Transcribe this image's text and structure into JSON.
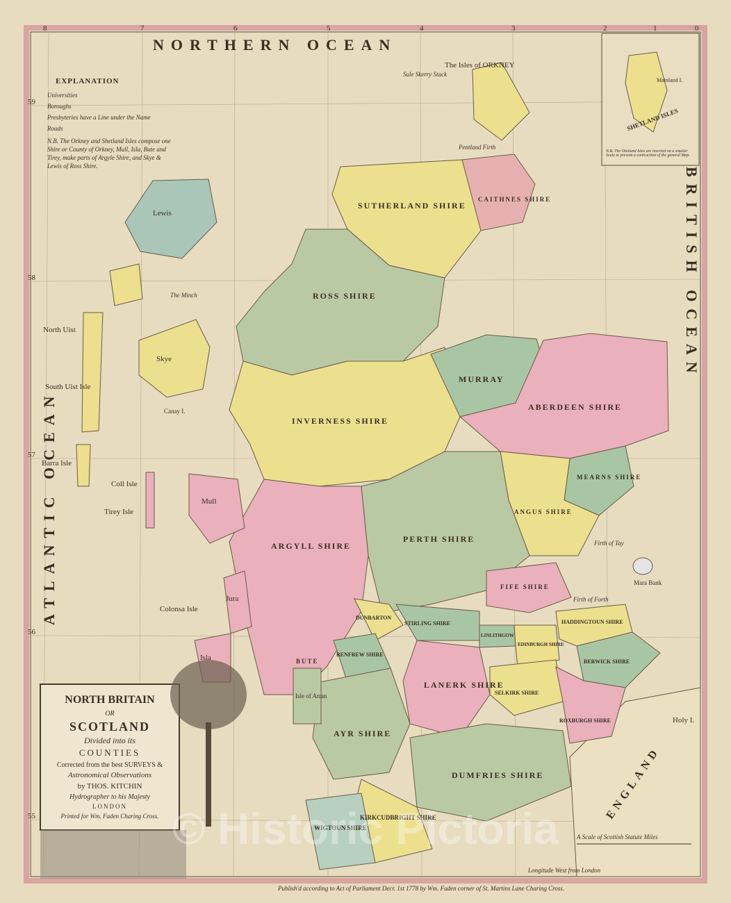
{
  "map": {
    "oceans": [
      "NORTHERN OCEAN",
      "ATLANTIC OCEAN",
      "BRITISH OCEAN",
      "ENGLAND"
    ],
    "explanation": {
      "title": "EXPLANATION",
      "lines": [
        "Universities",
        "Boroughs",
        "Presbyteries have a Line under the Name",
        "Roads",
        "N.B. The Orkney and Shetland Isles compose one",
        "Shire or County of Orkney, Mull, Isla, Bute and",
        "Tirey, make parts of Argyle Shire, and Skye &",
        "Lewis of Ross Shire."
      ]
    },
    "counties": [
      "CAITHNES SHIRE",
      "SUTHERLAND SHIRE",
      "ROSS SHIRE",
      "INVERNESS SHIRE",
      "MURRAY",
      "ABERDEEN SHIRE",
      "MEARNS SHIRE",
      "ANGUS SHIRE",
      "PERTH SHIRE",
      "FIFE SHIRE",
      "ARGYLL SHIRE",
      "DUNBARTON",
      "STIRLING SHIRE",
      "RENFREW SHIRE",
      "LANERK SHIRE",
      "AYR SHIRE",
      "LINLITHGOW",
      "EDINBURGH SHIRE",
      "HADDINGTOUN SHIRE",
      "BERWICK SHIRE",
      "SELKIRK SHIRE",
      "ROXBURGH SHIRE",
      "DUMFRIES SHIRE",
      "KIRKCUDBRIGHT SHIRE",
      "WIGTOUN SHIRE",
      "BUTE"
    ],
    "islands": [
      "The Isles of ORKNEY",
      "Lewis",
      "North Uist",
      "South Uist Isle",
      "Barra Isle",
      "Skye",
      "Mull",
      "Coll Isle",
      "Tirey Isle",
      "Colonsa Isle",
      "Isla",
      "Jura",
      "Isle of Arran",
      "Holy I.",
      "Mara Bank",
      "Canay I."
    ],
    "waters": [
      "Pentland Firth",
      "The Minch",
      "Firth of Tay",
      "Firth of Forth",
      "Sule Skerry Stack"
    ],
    "cartouche": [
      "NORTH BRITAIN",
      "OR",
      "SCOTLAND",
      "Divided into its",
      "COUNTIES",
      "Corrected from the best SURVEYS &",
      "Astronomical Observations",
      "by THOS. KITCHIN",
      "Hydrographer to his Majesty",
      "LONDON",
      "Printed for Wm. Faden Charing Cross."
    ],
    "inset": {
      "title": "SHETLAND ISLES",
      "island": "Mainland I.",
      "note": "N.B. The Shetland Isles are inserted on a smaller Scale to prevent a contraction of the general Map."
    },
    "longitudes": [
      "8",
      "7",
      "6",
      "5",
      "4",
      "3",
      "2",
      "1",
      "0"
    ],
    "latitudes": [
      "59",
      "58",
      "57",
      "56",
      "55"
    ],
    "scale_title": "A Scale of Scottish Statute Miles",
    "imprint": "Publish'd according to Act of Parliament Decr. 1st 1778 by Wm. Faden corner of St. Martins Lane Charing Cross.",
    "longitude_note": "Longitude West from London",
    "watermark": "© Historic Pictoria"
  }
}
